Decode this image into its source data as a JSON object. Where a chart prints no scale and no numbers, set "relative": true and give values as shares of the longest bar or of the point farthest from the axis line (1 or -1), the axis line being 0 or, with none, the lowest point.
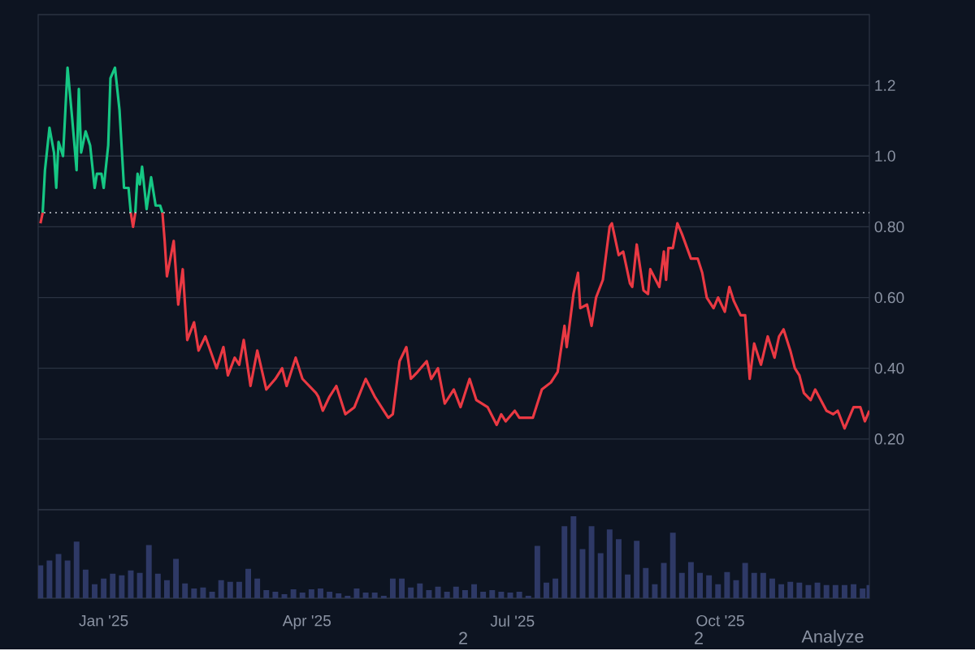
{
  "chart_data": [
    {
      "type": "line",
      "xlim": [
        "2024-12-03",
        "2025-12-06"
      ],
      "ylim": [
        0,
        1.4
      ],
      "yticks": [
        {
          "value": 0.2,
          "label": "0.20"
        },
        {
          "value": 0.4,
          "label": "0.40"
        },
        {
          "value": 0.6,
          "label": "0.60"
        },
        {
          "value": 0.8,
          "label": "0.80"
        },
        {
          "value": 1,
          "label": "1.0"
        },
        1.2
      ],
      "grid": "y",
      "tick_labels": "y",
      "ref_lines": [
        {
          "axis": "y",
          "value": 0.84,
          "color": "#c8ccd4",
          "line_style": "dotted"
        }
      ],
      "series": [
        {
          "color": "#16c784",
          "x": [
            "2024-12-05",
            "2024-12-06",
            "2024-12-08",
            "2024-12-10",
            "2024-12-11",
            "2024-12-12",
            "2024-12-14",
            "2024-12-16",
            "2024-12-18",
            "2024-12-20",
            "2024-12-21",
            "2024-12-22",
            "2024-12-24",
            "2024-12-26",
            "2024-12-28",
            "2024-12-29",
            "2024-12-31",
            "2025-01-01",
            "2025-01-03",
            "2025-01-04",
            "2025-01-06",
            "2025-01-08",
            "2025-01-10",
            "2025-01-12",
            "2025-01-13",
            "2025-01-14",
            "2025-01-15",
            "2025-01-16",
            "2025-01-17",
            "2025-01-18",
            "2025-01-20",
            "2025-01-22",
            "2025-01-24",
            "2025-01-26",
            "2025-01-27"
          ],
          "values": [
            0.84,
            0.96,
            1.08,
            1.01,
            0.91,
            1.04,
            1.0,
            1.25,
            1.11,
            0.96,
            1.19,
            1.01,
            1.07,
            1.03,
            0.91,
            0.95,
            0.95,
            0.91,
            1.03,
            1.22,
            1.25,
            1.13,
            0.91,
            0.91,
            0.84,
            null,
            0.84,
            0.95,
            0.92,
            0.97,
            0.85,
            0.94,
            0.86,
            0.86,
            0.84
          ]
        },
        {
          "color": "#ea3943",
          "x": [
            "2024-12-04",
            "2024-12-05",
            "2024-12-06",
            "2025-01-13",
            "2025-01-14",
            "2025-01-15",
            "2025-01-16",
            "2025-01-27",
            "2025-01-28",
            "2025-01-29",
            "2025-02-01",
            "2025-02-03",
            "2025-02-05",
            "2025-02-07",
            "2025-02-10",
            "2025-02-12",
            "2025-02-15",
            "2025-02-20",
            "2025-02-23",
            "2025-02-25",
            "2025-02-28",
            "2025-03-02",
            "2025-03-04",
            "2025-03-07",
            "2025-03-10",
            "2025-03-14",
            "2025-03-18",
            "2025-03-21",
            "2025-03-23",
            "2025-03-27",
            "2025-03-30",
            "2025-04-05",
            "2025-04-06",
            "2025-04-08",
            "2025-04-11",
            "2025-04-14",
            "2025-04-18",
            "2025-04-22",
            "2025-04-27",
            "2025-05-01",
            "2025-05-07",
            "2025-05-09",
            "2025-05-12",
            "2025-05-15",
            "2025-05-17",
            "2025-05-20",
            "2025-05-24",
            "2025-05-26",
            "2025-05-29",
            "2025-06-01",
            "2025-06-05",
            "2025-06-08",
            "2025-06-12",
            "2025-06-15",
            "2025-06-20",
            "2025-06-24",
            "2025-06-26",
            "2025-06-28",
            "2025-07-02",
            "2025-07-04",
            "2025-07-07",
            "2025-07-10",
            "2025-07-14",
            "2025-07-18",
            "2025-07-21",
            "2025-07-24",
            "2025-07-25",
            "2025-07-28",
            "2025-07-30",
            "2025-07-31",
            "2025-08-03",
            "2025-08-05",
            "2025-08-07",
            "2025-08-10",
            "2025-08-13",
            "2025-08-14",
            "2025-08-17",
            "2025-08-19",
            "2025-08-22",
            "2025-08-23",
            "2025-08-25",
            "2025-08-28",
            "2025-08-30",
            "2025-08-31",
            "2025-09-04",
            "2025-09-06",
            "2025-09-07",
            "2025-09-08",
            "2025-09-10",
            "2025-09-12",
            "2025-09-14",
            "2025-09-18",
            "2025-09-21",
            "2025-09-23",
            "2025-09-25",
            "2025-09-28",
            "2025-09-30",
            "2025-10-03",
            "2025-10-05",
            "2025-10-07",
            "2025-10-10",
            "2025-10-12",
            "2025-10-14",
            "2025-10-16",
            "2025-10-19",
            "2025-10-22",
            "2025-10-25",
            "2025-10-27",
            "2025-10-29",
            "2025-11-01",
            "2025-11-03",
            "2025-11-05",
            "2025-11-07",
            "2025-11-10",
            "2025-11-12",
            "2025-11-17",
            "2025-11-20",
            "2025-11-22",
            "2025-11-25",
            "2025-11-29",
            "2025-12-02",
            "2025-12-04",
            "2025-12-06"
          ],
          "values": [
            0.81,
            0.84,
            null,
            0.84,
            0.8,
            0.84,
            null,
            0.84,
            0.76,
            0.66,
            0.76,
            0.58,
            0.68,
            0.48,
            0.53,
            0.45,
            0.49,
            0.4,
            0.46,
            0.38,
            0.43,
            0.41,
            0.48,
            0.35,
            0.45,
            0.34,
            0.37,
            0.4,
            0.35,
            0.43,
            0.37,
            0.33,
            0.32,
            0.28,
            0.32,
            0.35,
            0.27,
            0.29,
            0.37,
            0.32,
            0.26,
            0.27,
            0.42,
            0.46,
            0.37,
            0.39,
            0.42,
            0.37,
            0.4,
            0.3,
            0.34,
            0.29,
            0.37,
            0.31,
            0.29,
            0.24,
            0.27,
            0.25,
            0.28,
            0.26,
            0.26,
            0.26,
            0.34,
            0.36,
            0.39,
            0.52,
            0.46,
            0.61,
            0.67,
            0.57,
            0.58,
            0.52,
            0.6,
            0.65,
            0.8,
            0.81,
            0.72,
            0.73,
            0.64,
            0.63,
            0.75,
            0.62,
            0.61,
            0.68,
            0.63,
            0.73,
            0.65,
            0.74,
            0.74,
            0.81,
            0.78,
            0.71,
            0.71,
            0.67,
            0.6,
            0.57,
            0.6,
            0.56,
            0.63,
            0.59,
            0.55,
            0.55,
            0.37,
            0.47,
            0.41,
            0.49,
            0.43,
            0.49,
            0.51,
            0.45,
            0.4,
            0.38,
            0.33,
            0.31,
            0.34,
            0.28,
            0.27,
            0.28,
            0.23,
            0.29,
            0.29,
            0.25,
            0.28
          ]
        }
      ]
    },
    {
      "type": "bar",
      "relative": true,
      "color": "#2e3966",
      "xlim": [
        "2024-12-03",
        "2025-12-06"
      ],
      "tick_labels": "x",
      "xticks": [
        {
          "value": "2025-01-01",
          "label": "Jan '25"
        },
        {
          "value": "2025-04-01",
          "label": "Apr '25"
        },
        {
          "value": "2025-07-01",
          "label": "Jul '25"
        },
        {
          "value": "2025-10-01",
          "label": "Oct '25"
        }
      ],
      "annotations": [
        "2",
        "2",
        "Analyze"
      ],
      "x": [
        "2024-12-04",
        "2024-12-08",
        "2024-12-12",
        "2024-12-16",
        "2024-12-20",
        "2024-12-24",
        "2024-12-28",
        "2025-01-01",
        "2025-01-05",
        "2025-01-09",
        "2025-01-13",
        "2025-01-17",
        "2025-01-21",
        "2025-01-25",
        "2025-01-29",
        "2025-02-02",
        "2025-02-06",
        "2025-02-10",
        "2025-02-14",
        "2025-02-18",
        "2025-02-22",
        "2025-02-26",
        "2025-03-02",
        "2025-03-06",
        "2025-03-10",
        "2025-03-14",
        "2025-03-18",
        "2025-03-22",
        "2025-03-26",
        "2025-03-30",
        "2025-04-03",
        "2025-04-07",
        "2025-04-11",
        "2025-04-15",
        "2025-04-19",
        "2025-04-23",
        "2025-04-27",
        "2025-05-01",
        "2025-05-05",
        "2025-05-09",
        "2025-05-13",
        "2025-05-17",
        "2025-05-21",
        "2025-05-25",
        "2025-05-29",
        "2025-06-02",
        "2025-06-06",
        "2025-06-10",
        "2025-06-14",
        "2025-06-18",
        "2025-06-22",
        "2025-06-26",
        "2025-06-30",
        "2025-07-04",
        "2025-07-08",
        "2025-07-12",
        "2025-07-16",
        "2025-07-20",
        "2025-07-24",
        "2025-07-28",
        "2025-08-01",
        "2025-08-05",
        "2025-08-09",
        "2025-08-13",
        "2025-08-17",
        "2025-08-21",
        "2025-08-25",
        "2025-08-29",
        "2025-09-02",
        "2025-09-06",
        "2025-09-10",
        "2025-09-14",
        "2025-09-18",
        "2025-09-22",
        "2025-09-26",
        "2025-09-30",
        "2025-10-04",
        "2025-10-08",
        "2025-10-12",
        "2025-10-16",
        "2025-10-20",
        "2025-10-24",
        "2025-10-28",
        "2025-11-01",
        "2025-11-05",
        "2025-11-09",
        "2025-11-13",
        "2025-11-17",
        "2025-11-21",
        "2025-11-25",
        "2025-11-29",
        "2025-12-03",
        "2025-12-06"
      ],
      "values": [
        0.4,
        0.46,
        0.54,
        0.46,
        0.69,
        0.35,
        0.17,
        0.24,
        0.3,
        0.28,
        0.34,
        0.31,
        0.65,
        0.3,
        0.22,
        0.48,
        0.18,
        0.12,
        0.13,
        0.08,
        0.22,
        0.2,
        0.2,
        0.36,
        0.24,
        0.1,
        0.08,
        0.05,
        0.11,
        0.07,
        0.11,
        0.12,
        0.08,
        0.06,
        0.03,
        0.12,
        0.07,
        0.07,
        0.03,
        0.24,
        0.24,
        0.13,
        0.18,
        0.1,
        0.14,
        0.08,
        0.14,
        0.1,
        0.17,
        0.08,
        0.1,
        0.08,
        0.07,
        0.08,
        0.03,
        0.64,
        0.19,
        0.24,
        0.88,
        1,
        0.6,
        0.88,
        0.55,
        0.84,
        0.72,
        0.29,
        0.7,
        0.37,
        0.17,
        0.43,
        0.8,
        0.31,
        0.44,
        0.31,
        0.28,
        0.17,
        0.32,
        0.22,
        0.43,
        0.31,
        0.31,
        0.24,
        0.17,
        0.2,
        0.19,
        0.16,
        0.19,
        0.16,
        0.16,
        0.16,
        0.17,
        0.12,
        0.16
      ]
    }
  ]
}
